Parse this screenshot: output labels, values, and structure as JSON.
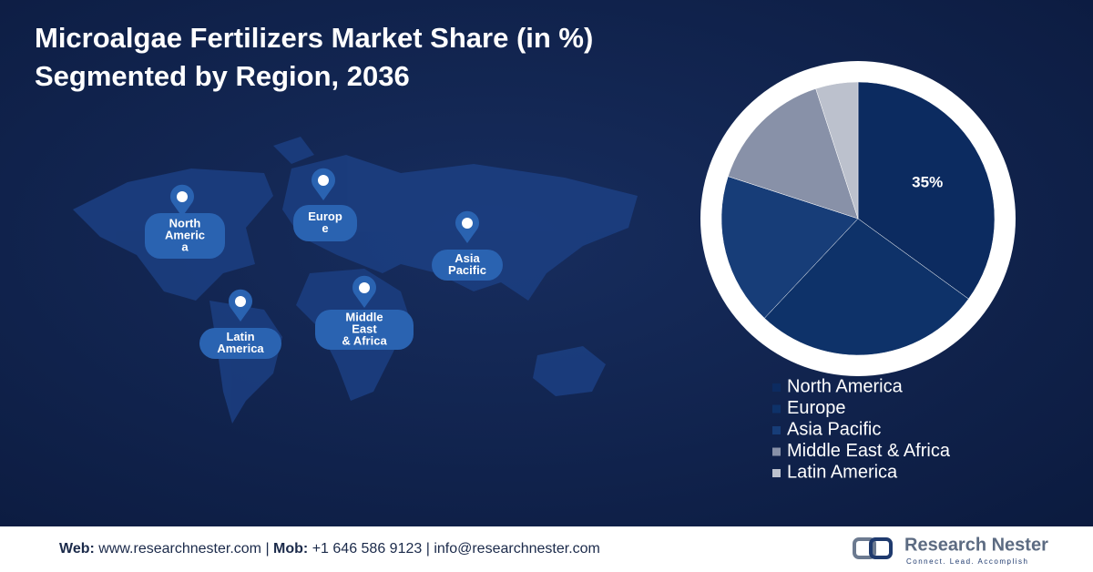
{
  "chart_data": {
    "type": "pie",
    "title": [
      "Microalgae Fertilizers Market Share (in %)",
      "Segmented by Region, 2036"
    ],
    "categories": [
      "North America",
      "Europe",
      "Asia Pacific",
      "Middle East & Africa",
      "Latin America"
    ],
    "values": [
      35,
      27,
      18,
      15,
      5
    ],
    "value_labels": [
      "35%",
      null,
      null,
      null,
      null
    ],
    "colors": [
      "#0c2b60",
      "#0e3269",
      "#173d78",
      "#8891a8",
      "#bcc1cd"
    ],
    "legend": "bottom"
  },
  "map_labels": [
    {
      "lines": [
        "North",
        "Americ",
        "a"
      ]
    },
    {
      "lines": [
        "Europ",
        "e"
      ]
    },
    {
      "lines": [
        "Asia",
        "Pacific"
      ]
    },
    {
      "lines": [
        "Middle",
        "East",
        "& Africa"
      ]
    },
    {
      "lines": [
        "Latin",
        "America"
      ]
    }
  ],
  "footer": {
    "web_label": "Web:",
    "web": "www.researchnester.com",
    "mob_label": "Mob:",
    "mob": "+1 646 586 9123",
    "email": "info@researchnester.com"
  },
  "logo": {
    "name": "Research Nester",
    "tagline": "Connect. Lead. Accomplish"
  }
}
